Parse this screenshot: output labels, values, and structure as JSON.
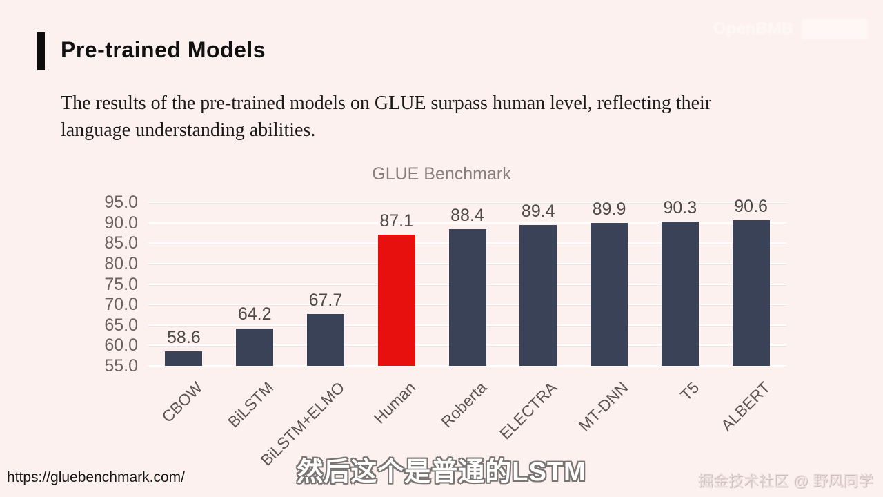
{
  "page": {
    "background": "#fdf1ef"
  },
  "header": {
    "title": "Pre-trained Models"
  },
  "body": {
    "line1": "The results of the pre-trained models on GLUE surpass human level, reflecting their",
    "line2": "language understanding abilities."
  },
  "chart_data": {
    "type": "bar",
    "title": "GLUE Benchmark",
    "categories": [
      "CBOW",
      "BiLSTM",
      "BiLSTM+ELMO",
      "Human",
      "Roberta",
      "ELECTRA",
      "MT-DNN",
      "T5",
      "ALBERT"
    ],
    "values": [
      58.6,
      64.2,
      67.7,
      87.1,
      88.4,
      89.4,
      89.9,
      90.3,
      90.6
    ],
    "value_labels": [
      "58.6",
      "64.2",
      "67.7",
      "87.1",
      "88.4",
      "89.4",
      "89.9",
      "90.3",
      "90.6"
    ],
    "bar_colors": [
      "#3a4257",
      "#3a4257",
      "#3a4257",
      "#e8100e",
      "#3a4257",
      "#3a4257",
      "#3a4257",
      "#3a4257",
      "#3a4257"
    ],
    "highlight_index": 3,
    "highlight_category": "Human",
    "ylim": [
      55,
      95
    ],
    "yticks": [
      "95.0",
      "90.0",
      "85.0",
      "80.0",
      "75.0",
      "70.0",
      "65.0",
      "60.0",
      "55.0"
    ],
    "grid": true,
    "legend": "none",
    "xlabel": "",
    "ylabel": ""
  },
  "footer": {
    "url": "https://gluebenchmark.com/",
    "subtitle": "然后这个是普通的LSTM",
    "watermark": "掘金技术社区 @ 野风同学"
  },
  "top_watermark": {
    "text": "OpenBMB"
  }
}
